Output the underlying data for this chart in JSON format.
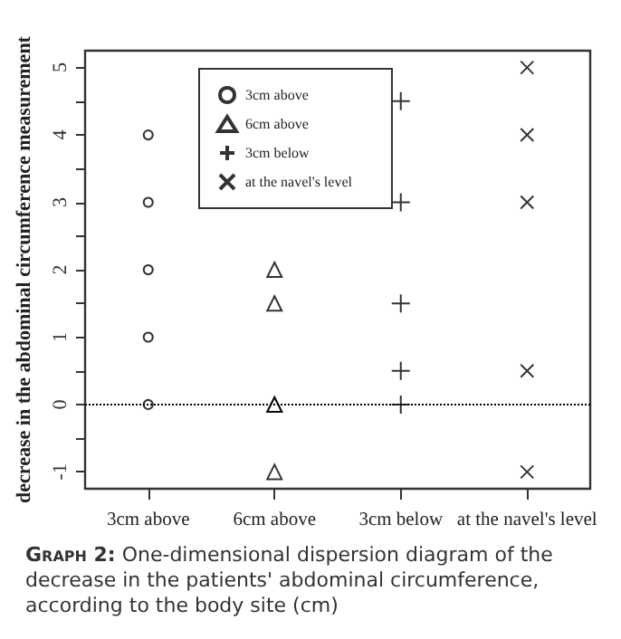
{
  "chart_data": {
    "type": "scatter",
    "categories": [
      "3cm above",
      "6cm above",
      "3cm below",
      "at the navel's level"
    ],
    "ylabel": "decrease in the abdominal circumference measurement",
    "ylim": [
      -1.25,
      5.25
    ],
    "yticks": [
      -1,
      {
        "value": -0.5,
        "label": null
      },
      0,
      {
        "value": 0.5,
        "label": null
      },
      1,
      {
        "value": 1.5,
        "label": null
      },
      2,
      {
        "value": 2.5,
        "label": null
      },
      3,
      {
        "value": 3.5,
        "label": null
      },
      4,
      {
        "value": 4.5,
        "label": null
      },
      5
    ],
    "series": [
      {
        "name": "3cm above",
        "color": "#000000",
        "marker": "circle",
        "x": [
          "3cm above",
          "3cm above",
          "3cm above",
          "3cm above",
          "3cm above"
        ],
        "values": [
          4,
          3,
          2,
          1,
          0
        ]
      },
      {
        "name": "6cm above",
        "color": "#000000",
        "marker": "triangle",
        "x": [
          "6cm above",
          "6cm above",
          "6cm above",
          "6cm above",
          "6cm above"
        ],
        "values": [
          2,
          1.5,
          0,
          0,
          -1
        ]
      },
      {
        "name": "3cm below",
        "color": "#000000",
        "marker": "plus",
        "x": [
          "3cm below",
          "3cm below",
          "3cm below",
          "3cm below",
          "3cm below"
        ],
        "values": [
          4.5,
          3,
          1.5,
          0.5,
          0
        ]
      },
      {
        "name": "at the navel's level",
        "color": "#000000",
        "marker": "cross",
        "x": [
          "at the navel's level",
          "at the navel's level",
          "at the navel's level",
          "at the navel's level",
          "at the navel's level"
        ],
        "values": [
          5,
          4,
          3,
          0.5,
          -1
        ]
      }
    ],
    "ref_lines": [
      {
        "axis": "y",
        "value": 0,
        "line_style": "dotted",
        "color": "#000000"
      }
    ],
    "legend": "top",
    "grid": false,
    "annotations": [
      "Graph 2: One-dimensional dispersion diagram of the decrease in the patients' abdominal circumference, according to the body site (cm)"
    ]
  }
}
